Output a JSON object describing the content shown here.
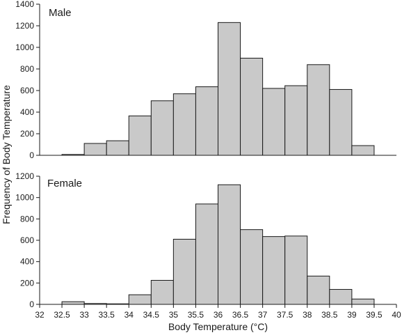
{
  "chart_data": {
    "type": "bar",
    "xlabel": "Body Temperature (°C)",
    "ylabel": "Frequency of Body Temperature",
    "x_ticks": [
      "32",
      "32.5",
      "33",
      "33.5",
      "34",
      "34.5",
      "35",
      "35.5",
      "36",
      "36.5",
      "37",
      "37.5",
      "38",
      "38.5",
      "39",
      "39.5",
      "40"
    ],
    "xlim": [
      32,
      40
    ],
    "bin_width": 0.5,
    "grid": false,
    "panels": [
      {
        "label": "Male",
        "ylim": [
          0,
          1400
        ],
        "y_ticks": [
          "0",
          "200",
          "400",
          "600",
          "800",
          "1000",
          "1200",
          "1400"
        ],
        "bin_starts": [
          32.5,
          33,
          33.5,
          34,
          34.5,
          35,
          35.5,
          36,
          36.5,
          37,
          37.5,
          38,
          38.5,
          39
        ],
        "values": [
          8,
          110,
          135,
          365,
          505,
          570,
          635,
          1230,
          900,
          620,
          645,
          840,
          610,
          90
        ]
      },
      {
        "label": "Female",
        "ylim": [
          0,
          1200
        ],
        "y_ticks": [
          "0",
          "200",
          "400",
          "600",
          "800",
          "1000",
          "1200"
        ],
        "bin_starts": [
          32.5,
          33,
          33.5,
          34,
          34.5,
          35,
          35.5,
          36,
          36.5,
          37,
          37.5,
          38,
          38.5,
          39
        ],
        "values": [
          25,
          8,
          5,
          90,
          225,
          610,
          940,
          1120,
          700,
          635,
          640,
          265,
          140,
          50
        ]
      }
    ]
  }
}
